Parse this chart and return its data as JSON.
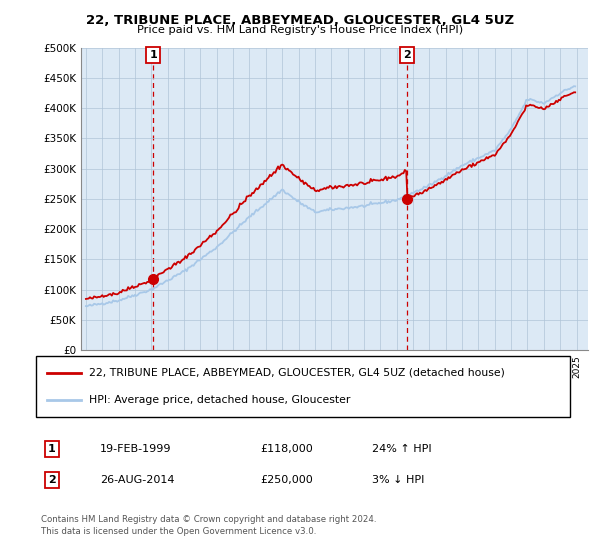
{
  "title": "22, TRIBUNE PLACE, ABBEYMEAD, GLOUCESTER, GL4 5UZ",
  "subtitle": "Price paid vs. HM Land Registry's House Price Index (HPI)",
  "legend_line1": "22, TRIBUNE PLACE, ABBEYMEAD, GLOUCESTER, GL4 5UZ (detached house)",
  "legend_line2": "HPI: Average price, detached house, Gloucester",
  "sale1_date": "19-FEB-1999",
  "sale1_price": "£118,000",
  "sale1_hpi": "24% ↑ HPI",
  "sale2_date": "26-AUG-2014",
  "sale2_price": "£250,000",
  "sale2_hpi": "3% ↓ HPI",
  "footer": "Contains HM Land Registry data © Crown copyright and database right 2024.\nThis data is licensed under the Open Government Licence v3.0.",
  "hpi_color": "#a8c8e8",
  "price_color": "#cc0000",
  "vline_color": "#cc0000",
  "ylim": [
    0,
    500000
  ],
  "yticks": [
    0,
    50000,
    100000,
    150000,
    200000,
    250000,
    300000,
    350000,
    400000,
    450000,
    500000
  ],
  "xlim_start": 1994.7,
  "xlim_end": 2025.7,
  "sale1_x": 1999.13,
  "sale1_y": 118000,
  "sale2_x": 2014.65,
  "sale2_y": 250000,
  "background_color": "#dce9f5",
  "plot_bg": "#dce9f5",
  "grid_color": "#b0c4d8"
}
